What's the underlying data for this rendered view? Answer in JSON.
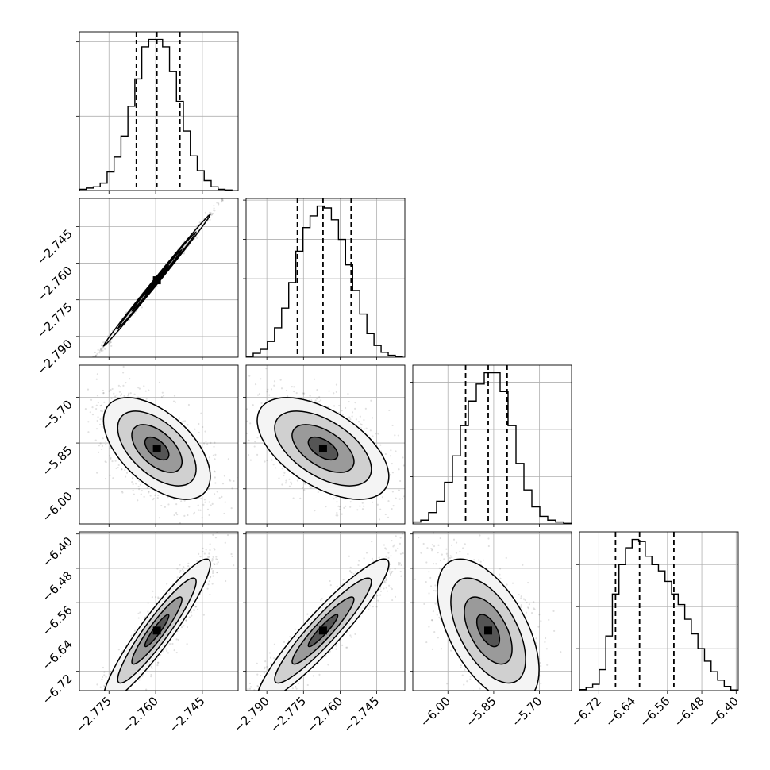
{
  "chart_data": {
    "type": "corner",
    "grid": true,
    "parameters": [
      {
        "range": [
          -2.7845,
          -2.7335
        ],
        "ticks": [
          -2.775,
          -2.76,
          -2.745
        ],
        "tick_labels": [
          "−2.775",
          "−2.760",
          "−2.745"
        ],
        "quantiles": [
          -2.7662,
          -2.7596,
          -2.7522
        ],
        "hist_rows": [],
        "hist_counts": [
          0.5,
          1.0,
          1.5,
          3.0,
          7.5,
          13.5,
          22.0,
          34.0,
          45.0,
          58.0,
          61.0,
          61.0,
          58.0,
          48.0,
          36.0,
          24.0,
          14.0,
          8.0,
          4.0,
          1.5,
          0.5,
          0.2
        ],
        "hist_range": [
          -2.7845,
          -2.7355
        ],
        "hist_ticks": [
          30,
          60
        ]
      },
      {
        "range": [
          -2.7985,
          -2.7335
        ],
        "ticks": [
          -2.79,
          -2.775,
          -2.76,
          -2.745
        ],
        "tick_labels": [
          "−2.790",
          "−2.775",
          "−2.760",
          "−2.745"
        ],
        "quantiles": [
          -2.7775,
          -2.767,
          -2.7555
        ],
        "hist_rows": [
          -2.745,
          -2.76,
          -2.775,
          -2.79
        ],
        "hist_counts": [
          0.5,
          2.0,
          4.0,
          8.0,
          15.0,
          25.0,
          38.0,
          54.0,
          66.0,
          72.0,
          77.0,
          76.0,
          70.0,
          60.0,
          47.0,
          34.0,
          22.0,
          12.0,
          6.0,
          2.5,
          1.0,
          0.3
        ],
        "hist_range": [
          -2.7985,
          -2.7345
        ],
        "hist_ticks": [
          20,
          40,
          60,
          80
        ]
      },
      {
        "range": [
          -6.115,
          -5.595
        ],
        "ticks": [
          -6.0,
          -5.85,
          -5.7
        ],
        "tick_labels": [
          "−6.00",
          "−5.85",
          "−5.70"
        ],
        "quantiles": [
          -5.942,
          -5.868,
          -5.806
        ],
        "hist_rows": [
          -5.7,
          -5.85,
          -6.0
        ],
        "hist_counts": [
          1.0,
          2.0,
          6.0,
          12.0,
          22.0,
          36.0,
          52.0,
          65.0,
          74.0,
          80.0,
          80.0,
          70.0,
          52.0,
          32.0,
          18.0,
          9.0,
          4.0,
          2.0,
          1.0,
          0.3
        ],
        "hist_range": [
          -6.115,
          -5.595
        ],
        "hist_ticks": [
          25,
          50,
          75
        ]
      },
      {
        "range": [
          -6.765,
          -6.395
        ],
        "ticks": [
          -6.72,
          -6.64,
          -6.56,
          -6.48,
          -6.4
        ],
        "tick_labels": [
          "−6.72",
          "−6.64",
          "−6.56",
          "−6.48",
          "−6.40"
        ],
        "quantiles": [
          -6.681,
          -6.625,
          -6.545
        ],
        "hist_rows": [
          -6.4,
          -6.48,
          -6.56,
          -6.64,
          -6.72
        ],
        "hist_counts": [
          0.5,
          1.5,
          3.0,
          10.0,
          26.0,
          46.0,
          60.0,
          68.0,
          72.0,
          71.0,
          64.0,
          60.0,
          57.0,
          52.0,
          46.0,
          41.0,
          34.0,
          27.0,
          20.0,
          14.0,
          9.0,
          5.0,
          2.0,
          0.3
        ],
        "hist_range": [
          -6.765,
          -6.397
        ],
        "hist_ticks": [
          20,
          40,
          60
        ]
      }
    ],
    "correlations": [
      [
        1,
        0.998,
        -0.55,
        0.93
      ],
      [
        0.998,
        1,
        -0.55,
        0.93
      ],
      [
        -0.55,
        -0.55,
        1,
        -0.55
      ],
      [
        0.93,
        0.93,
        -0.55,
        1
      ]
    ]
  }
}
